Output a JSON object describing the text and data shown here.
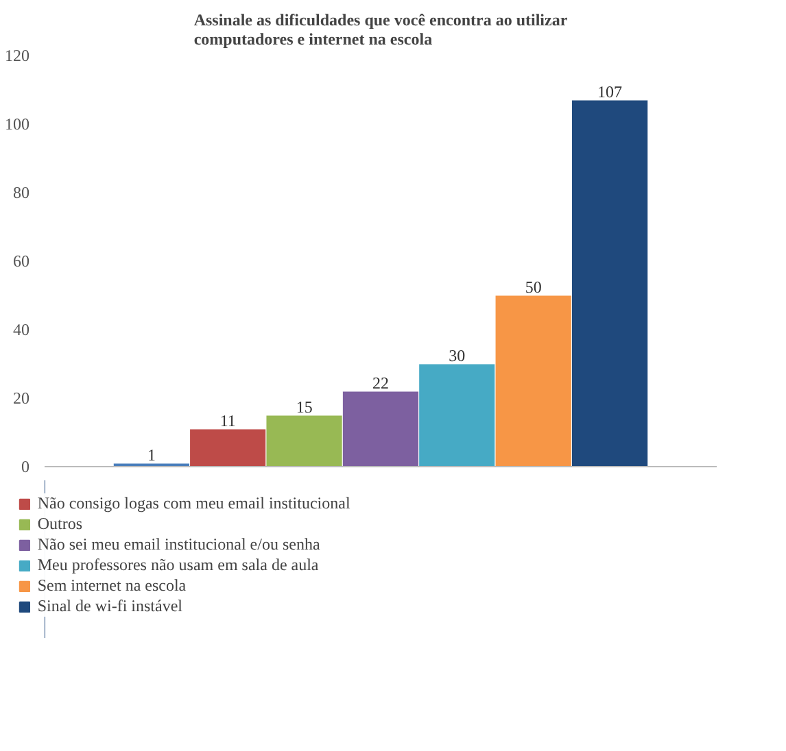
{
  "chart_data": {
    "type": "bar",
    "title": "Assinale as dificuldades que você encontra ao utilizar computadores e internet na escola",
    "categories": [
      null
    ],
    "ylim": [
      0,
      120
    ],
    "yticks": [
      0,
      20,
      40,
      60,
      80,
      100,
      120
    ],
    "grid": false,
    "legend": "bottom",
    "data_labels": true,
    "series": [
      {
        "color": "#4a7ebb",
        "values": [
          1
        ]
      },
      {
        "name": "Não consigo logas com meu email institucional",
        "color": "#be4b48",
        "values": [
          11
        ]
      },
      {
        "name": "Outros",
        "color": "#98b954",
        "values": [
          15
        ]
      },
      {
        "name": "Não sei meu email institucional e/ou senha",
        "color": "#7d60a0",
        "values": [
          22
        ]
      },
      {
        "name": "Meu professores não usam em sala de aula",
        "color": "#46aac5",
        "values": [
          30
        ]
      },
      {
        "name": "Sem internet na escola",
        "color": "#f79646",
        "values": [
          50
        ]
      },
      {
        "name": "Sinal de wi-fi instável",
        "color": "#1f497d",
        "values": [
          107
        ]
      }
    ]
  }
}
